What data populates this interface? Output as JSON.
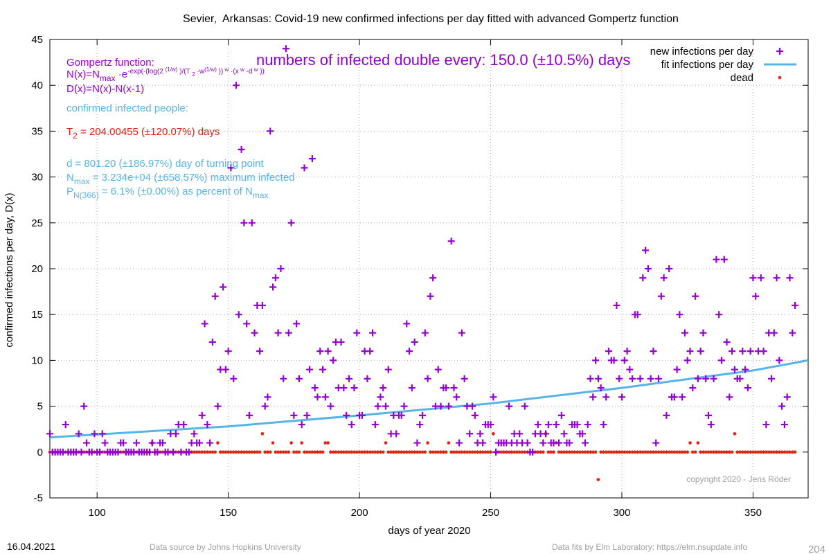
{
  "chart_data": {
    "type": "scatter",
    "title": "Sevier,  Arkansas: Covid-19 new confirmed infections per day fitted with advanced Gompertz function",
    "x_label": "days of year 2020",
    "y_label": "confirmed infections per day, D(x)",
    "xlim": [
      82,
      371
    ],
    "ylim": [
      -5,
      45
    ],
    "xticks": [
      100,
      150,
      200,
      250,
      300,
      350
    ],
    "yticks": [
      -5,
      0,
      5,
      10,
      15,
      20,
      25,
      30,
      35,
      40,
      45
    ],
    "grid": true,
    "legend": "top-right",
    "x": [
      82,
      83,
      84,
      85,
      86,
      87,
      88,
      89,
      90,
      91,
      92,
      93,
      94,
      95,
      96,
      97,
      98,
      99,
      100,
      101,
      102,
      103,
      104,
      105,
      106,
      107,
      108,
      109,
      110,
      111,
      112,
      113,
      114,
      115,
      116,
      117,
      118,
      119,
      120,
      121,
      122,
      123,
      124,
      125,
      126,
      127,
      128,
      129,
      130,
      131,
      132,
      133,
      134,
      135,
      136,
      137,
      138,
      139,
      140,
      141,
      142,
      143,
      144,
      145,
      146,
      147,
      148,
      149,
      150,
      151,
      152,
      153,
      154,
      155,
      156,
      157,
      158,
      159,
      160,
      161,
      162,
      163,
      164,
      165,
      166,
      167,
      168,
      169,
      170,
      171,
      172,
      173,
      174,
      175,
      176,
      177,
      178,
      179,
      180,
      181,
      182,
      183,
      184,
      185,
      186,
      187,
      188,
      189,
      190,
      191,
      192,
      193,
      194,
      195,
      196,
      197,
      198,
      199,
      200,
      201,
      202,
      203,
      204,
      205,
      206,
      207,
      208,
      209,
      210,
      211,
      212,
      213,
      214,
      215,
      216,
      217,
      218,
      219,
      220,
      221,
      222,
      223,
      224,
      225,
      226,
      227,
      228,
      229,
      230,
      231,
      232,
      233,
      234,
      235,
      236,
      237,
      238,
      239,
      240,
      241,
      242,
      243,
      244,
      245,
      246,
      247,
      248,
      249,
      250,
      251,
      252,
      253,
      254,
      255,
      256,
      257,
      258,
      259,
      260,
      261,
      262,
      263,
      264,
      265,
      266,
      267,
      268,
      269,
      270,
      271,
      272,
      273,
      274,
      275,
      276,
      277,
      278,
      279,
      280,
      281,
      282,
      283,
      284,
      285,
      286,
      287,
      288,
      289,
      290,
      291,
      292,
      293,
      294,
      295,
      296,
      297,
      298,
      299,
      300,
      301,
      302,
      303,
      304,
      305,
      306,
      307,
      308,
      309,
      310,
      311,
      312,
      313,
      314,
      315,
      316,
      317,
      318,
      319,
      320,
      321,
      322,
      323,
      324,
      325,
      326,
      327,
      328,
      329,
      330,
      331,
      332,
      333,
      334,
      335,
      336,
      337,
      338,
      339,
      340,
      341,
      342,
      343,
      344,
      345,
      346,
      347,
      348,
      349,
      350,
      351,
      352,
      353,
      354,
      355,
      356,
      357,
      358,
      359,
      360,
      361,
      362,
      363,
      364,
      365,
      366
    ],
    "series": [
      {
        "name": "new infections per day",
        "color": "#9400d3",
        "marker": "plus",
        "values": [
          2,
          0,
          0,
          0,
          0,
          0,
          3,
          0,
          0,
          0,
          0,
          2,
          0,
          5,
          1,
          0,
          0,
          2,
          0,
          0,
          2,
          1,
          0,
          0,
          0,
          0,
          0,
          1,
          1,
          0,
          0,
          0,
          0,
          1,
          0,
          0,
          0,
          0,
          0,
          1,
          0,
          0,
          1,
          1,
          0,
          0,
          2,
          0,
          2,
          3,
          0,
          3,
          0,
          0,
          1,
          2,
          1,
          1,
          4,
          14,
          3,
          1,
          12,
          17,
          5,
          9,
          18,
          9,
          11,
          31,
          8,
          40,
          15,
          33,
          25,
          14,
          4,
          25,
          13,
          16,
          11,
          16,
          5,
          6,
          35,
          18,
          19,
          13,
          20,
          8,
          44,
          13,
          25,
          4,
          14,
          8,
          3,
          31,
          4,
          9,
          32,
          7,
          6,
          11,
          9,
          6,
          11,
          5,
          10,
          12,
          7,
          12,
          7,
          4,
          8,
          3,
          7,
          13,
          4,
          4,
          11,
          8,
          11,
          13,
          3,
          5,
          6,
          7,
          5,
          9,
          2,
          4,
          2,
          4,
          4,
          5,
          14,
          11,
          7,
          12,
          1,
          3,
          4,
          13,
          8,
          17,
          19,
          5,
          9,
          5,
          7,
          7,
          5,
          23,
          7,
          6,
          1,
          13,
          8,
          5,
          2,
          5,
          4,
          1,
          2,
          1,
          3,
          3,
          3,
          6,
          0,
          1,
          1,
          1,
          1,
          5,
          1,
          2,
          1,
          2,
          1,
          5,
          1,
          0,
          0,
          2,
          3,
          2,
          1,
          2,
          3,
          1,
          1,
          3,
          1,
          4,
          2,
          1,
          1,
          3,
          3,
          3,
          2,
          2,
          1,
          3,
          8,
          6,
          10,
          8,
          7,
          3,
          6,
          11,
          10,
          10,
          16,
          8,
          6,
          10,
          11,
          9,
          8,
          15,
          15,
          8,
          19,
          22,
          20,
          8,
          11,
          1,
          8,
          17,
          19,
          4,
          20,
          6,
          6,
          9,
          15,
          6,
          13,
          10,
          11,
          7,
          17,
          8,
          11,
          13,
          8,
          4,
          3,
          8,
          21,
          15,
          10,
          21,
          12,
          6,
          11,
          9,
          8,
          8,
          11,
          9,
          7,
          11,
          19,
          17,
          11,
          19,
          11,
          3,
          13,
          8,
          13,
          19,
          10,
          5,
          3,
          6,
          19,
          13,
          16
        ]
      },
      {
        "name": "fit infections per day",
        "color": "#56b4e9",
        "marker": "line",
        "x": [
          82,
          150,
          200,
          250,
          300,
          350,
          371
        ],
        "values": [
          1.6,
          2.8,
          4.0,
          5.3,
          7.0,
          8.9,
          10.0
        ]
      },
      {
        "name": "dead",
        "color": "#e51e10",
        "marker": "star",
        "values": [
          0,
          0,
          0,
          0,
          0,
          0,
          0,
          0,
          0,
          0,
          0,
          0,
          0,
          0,
          0,
          0,
          0,
          0,
          0,
          0,
          0,
          0,
          0,
          0,
          0,
          0,
          0,
          0,
          0,
          0,
          0,
          0,
          0,
          0,
          0,
          0,
          0,
          0,
          0,
          1,
          0,
          0,
          0,
          0,
          0,
          0,
          0,
          0,
          0,
          0,
          0,
          0,
          0,
          0,
          0,
          0,
          0,
          0,
          0,
          0,
          0,
          0,
          0,
          0,
          1,
          0,
          0,
          0,
          0,
          0,
          0,
          0,
          0,
          0,
          0,
          0,
          0,
          0,
          0,
          0,
          0,
          2,
          0,
          0,
          0,
          1,
          0,
          0,
          0,
          0,
          0,
          0,
          1,
          0,
          0,
          0,
          1,
          0,
          0,
          0,
          0,
          0,
          0,
          0,
          0,
          1,
          1,
          0,
          0,
          0,
          0,
          0,
          0,
          0,
          0,
          0,
          0,
          0,
          0,
          0,
          0,
          0,
          0,
          0,
          0,
          0,
          0,
          0,
          1,
          0,
          0,
          0,
          0,
          0,
          0,
          0,
          0,
          0,
          0,
          0,
          0,
          0,
          0,
          0,
          1,
          0,
          0,
          0,
          0,
          0,
          0,
          0,
          1,
          0,
          0,
          0,
          0,
          0,
          0,
          0,
          0,
          0,
          0,
          0,
          0,
          0,
          0,
          0,
          0,
          2,
          0,
          0,
          0,
          0,
          0,
          0,
          0,
          0,
          0,
          0,
          0,
          0,
          0,
          0,
          0,
          0,
          0,
          0,
          0,
          2,
          0,
          0,
          0,
          1,
          0,
          0,
          0,
          0,
          0,
          0,
          0,
          0,
          0,
          0,
          0,
          0,
          0,
          0,
          0,
          -3,
          0,
          0,
          0,
          0,
          0,
          0,
          0,
          0,
          0,
          0,
          0,
          0,
          0,
          0,
          0,
          0,
          0,
          0,
          0,
          0,
          0,
          0,
          0,
          0,
          0,
          0,
          0,
          0,
          0,
          0,
          0,
          0,
          0,
          0,
          1,
          0,
          0,
          1,
          0,
          0,
          0,
          0,
          0,
          0,
          0,
          0,
          0,
          0,
          0,
          0,
          0,
          2,
          0,
          0,
          0,
          0,
          0,
          0,
          0,
          0,
          0,
          0,
          0,
          0,
          0,
          0,
          0,
          0,
          0,
          0,
          0,
          0,
          0,
          0,
          0
        ]
      }
    ],
    "headline": {
      "text": "numbers of infected double every: 150.0 (±10.5%) days",
      "color": "#9400d3"
    },
    "annotations": [
      {
        "color": "#9400d3",
        "parts": [
          {
            "t": "Gompertz function:"
          }
        ]
      },
      {
        "color": "#9400d3",
        "parts": [
          {
            "t": "N(x)=N"
          },
          {
            "t": "max",
            "s": "sub"
          },
          {
            "t": " ·e"
          },
          {
            "t": "-exp(-(log(2 ",
            "s": "sup"
          },
          {
            "t": "(1/w)",
            "s": "sup2"
          },
          {
            "t": " )/(T ",
            "s": "sup"
          },
          {
            "t": "2",
            "s": "supsub"
          },
          {
            "t": " ·w",
            "s": "sup"
          },
          {
            "t": "(1/w)",
            "s": "sup2"
          },
          {
            "t": " ))",
            "s": "sup"
          },
          {
            "t": " w",
            "s": "sup2"
          },
          {
            "t": " ·(x",
            "s": "sup"
          },
          {
            "t": " w",
            "s": "sup2"
          },
          {
            "t": " -d",
            "s": "sup"
          },
          {
            "t": " w",
            "s": "sup2"
          },
          {
            "t": " ))",
            "s": "sup"
          }
        ]
      },
      {
        "color": "#9400d3",
        "parts": [
          {
            "t": "D(x)=N(x)-N(x-1)"
          }
        ]
      },
      {
        "color": "#56b4e9",
        "parts": [
          {
            "t": "confirmed infected people:"
          }
        ]
      },
      {
        "color": "#e51e10",
        "parts": [
          {
            "t": "T"
          },
          {
            "t": "2",
            "s": "sub"
          },
          {
            "t": " = 204.00455 (±120.07%) days"
          }
        ]
      },
      {
        "color": "#56b4e9",
        "parts": [
          {
            "t": "d = 801.20 (±186.97%) day of turning point"
          }
        ]
      },
      {
        "color": "#56b4e9",
        "parts": [
          {
            "t": "N"
          },
          {
            "t": "max",
            "s": "sub"
          },
          {
            "t": " = 3.234e+04 (±658.57%) maximum infected"
          }
        ]
      },
      {
        "color": "#56b4e9",
        "parts": [
          {
            "t": "P"
          },
          {
            "t": "N(366)",
            "s": "sub"
          },
          {
            "t": " = 6.1% (±0.00%) as percent of N"
          },
          {
            "t": "max",
            "s": "sub"
          }
        ]
      }
    ],
    "copyright": "copyright 2020 - Jens Röder",
    "footer": {
      "date": "16.04.2021",
      "source": "Data source by Johns Hopkins University",
      "fits": "Data fits by Elm Laboratory: https://elm.nsupdate.info",
      "number": "204"
    }
  }
}
